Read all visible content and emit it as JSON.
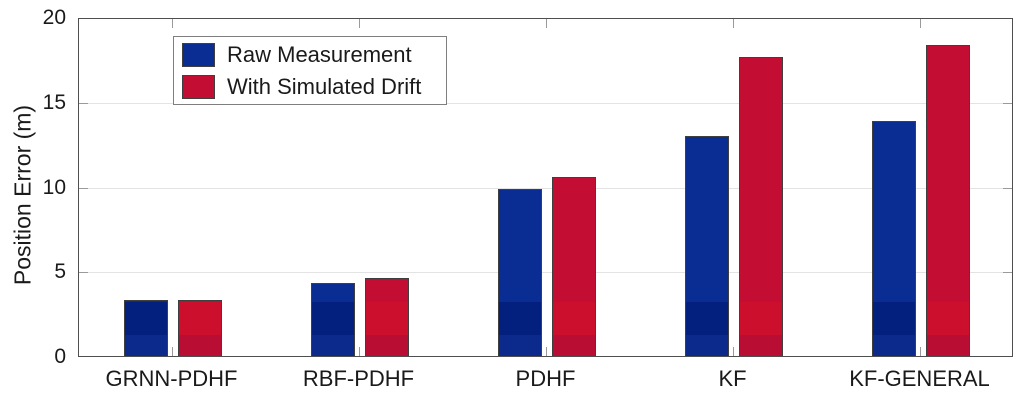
{
  "chart_data": {
    "type": "bar",
    "ylabel": "Position Error (m)",
    "categories": [
      "GRNN-PDHF",
      "RBF-PDHF",
      "PDHF",
      "KF",
      "KF-GENERAL"
    ],
    "series": [
      {
        "name": "Raw Measurement",
        "color": "#0a2d94",
        "values": [
          3.28,
          4.32,
          9.85,
          13.0,
          13.87
        ]
      },
      {
        "name": "With Simulated Drift",
        "color": "#c40d32",
        "values": [
          3.33,
          4.62,
          10.55,
          17.66,
          18.35
        ]
      }
    ],
    "ylim": [
      0,
      20
    ],
    "yticks": [
      0,
      5,
      10,
      15,
      20
    ],
    "grid": "horizontal",
    "legend_position": "top-left",
    "colors": {
      "axis": "#4f4f4f",
      "gridline": "#e3e3e3",
      "tick": "#9a9a9a",
      "bar_edge": "#3f3f3f"
    }
  }
}
